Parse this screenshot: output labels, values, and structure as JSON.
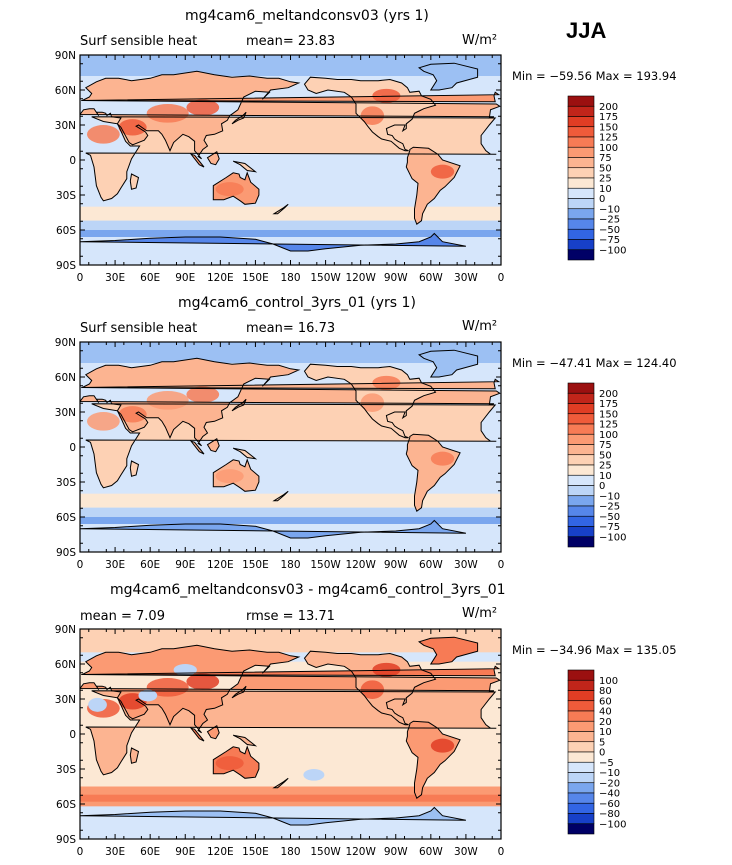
{
  "season_label": "JJA",
  "colors": {
    "positive_scale": [
      "#ffffff",
      "#fce8d4",
      "#fdd1b4",
      "#fcb491",
      "#fb9a73",
      "#f77b55",
      "#ef5b3a",
      "#e03d24",
      "#c1251a",
      "#9b1010"
    ],
    "negative_scale": [
      "#d6e6fb",
      "#bcd5f7",
      "#9cc0f3",
      "#7aa6ee",
      "#5686ea",
      "#3265e4",
      "#1740c8",
      "#062a8f",
      "#000066"
    ],
    "land_outline": "#000000"
  },
  "panels": [
    {
      "title": "mg4cam6_meltandconsv03 (yrs 1)",
      "left_label": "Surf sensible heat",
      "center_label": "mean=   23.83",
      "units": "W/m²",
      "min_max": "Min = −59.56  Max = 193.94",
      "colorbar_labels": [
        "200",
        "175",
        "150",
        "125",
        "100",
        "75",
        "50",
        "25",
        "10",
        "0",
        "−10",
        "−25",
        "−50",
        "−75",
        "−100"
      ]
    },
    {
      "title": "mg4cam6_control_3yrs_01 (yrs 1)",
      "left_label": "Surf sensible heat",
      "center_label": "mean=   16.73",
      "units": "W/m²",
      "min_max": "Min = −47.41  Max = 124.40",
      "colorbar_labels": [
        "200",
        "175",
        "150",
        "125",
        "100",
        "75",
        "50",
        "25",
        "10",
        "0",
        "−10",
        "−25",
        "−50",
        "−75",
        "−100"
      ]
    },
    {
      "title": "mg4cam6_meltandconsv03 - mg4cam6_control_3yrs_01",
      "left_label": "mean =     7.09",
      "center_label": "rmse =    13.71",
      "units": "W/m²",
      "min_max": "Min = −34.96  Max = 135.05",
      "colorbar_labels": [
        "100",
        "80",
        "60",
        "40",
        "20",
        "10",
        "5",
        "0",
        "−5",
        "−10",
        "−20",
        "−40",
        "−60",
        "−80",
        "−100"
      ]
    }
  ],
  "chart_data": {
    "type": "heatmap",
    "projection": "cylindrical equidistant, centered on 180",
    "lat_ticks": [
      "90N",
      "60N",
      "30N",
      "0",
      "30S",
      "60S",
      "90S"
    ],
    "lon_ticks": [
      "0",
      "30E",
      "60E",
      "90E",
      "120E",
      "150E",
      "180",
      "150W",
      "120W",
      "90W",
      "60W",
      "30W",
      "0"
    ],
    "lat_range": [
      -90,
      90
    ],
    "lon_range": [
      0,
      360
    ],
    "variable": "Surf sensible heat"
  }
}
